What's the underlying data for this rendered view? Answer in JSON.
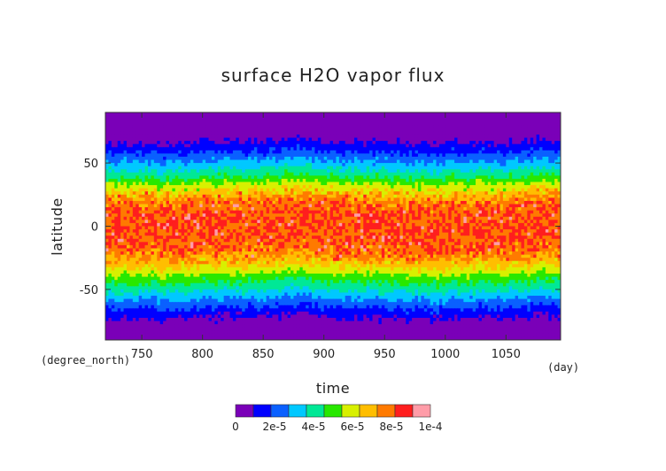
{
  "chart_data": {
    "type": "heatmap",
    "title": "surface H2O vapor flux",
    "xlabel": "time",
    "ylabel": "latitude",
    "x_unit": "(day)",
    "y_unit": "(degree_north)",
    "xlim": [
      720,
      1095
    ],
    "ylim": [
      -90,
      90
    ],
    "x_ticks": [
      {
        "value": 750,
        "label": "750"
      },
      {
        "value": 800,
        "label": "800"
      },
      {
        "value": 850,
        "label": "850"
      },
      {
        "value": 900,
        "label": "900"
      },
      {
        "value": 950,
        "label": "950"
      },
      {
        "value": 1000,
        "label": "1000"
      },
      {
        "value": 1050,
        "label": "1050"
      }
    ],
    "y_ticks": [
      {
        "value": 50,
        "label": "50"
      },
      {
        "value": 0,
        "label": "0"
      },
      {
        "value": -50,
        "label": "-50"
      }
    ],
    "color_levels": [
      0,
      1e-05,
      2e-05,
      3e-05,
      4e-05,
      5e-05,
      6e-05,
      7e-05,
      8e-05,
      9e-05,
      0.0001
    ],
    "colors": [
      "#7a00b8",
      "#0000ff",
      "#0a60ff",
      "#00c8ff",
      "#00e896",
      "#28e800",
      "#d8f000",
      "#ffbe00",
      "#ff7a00",
      "#ff1e1e",
      "#ff9ca8"
    ],
    "colorbar_labels": [
      {
        "value": 0,
        "label": "0"
      },
      {
        "value": 2e-05,
        "label": "2e-5"
      },
      {
        "value": 4e-05,
        "label": "4e-5"
      },
      {
        "value": 6e-05,
        "label": "6e-5"
      },
      {
        "value": 8e-05,
        "label": "8e-5"
      },
      {
        "value": 0.0001,
        "label": "1e-4"
      }
    ],
    "latitudinal_profile": {
      "latitude": [
        -90,
        -80,
        -70,
        -60,
        -50,
        -40,
        -30,
        -20,
        -10,
        0,
        10,
        20,
        30,
        40,
        50,
        60,
        70,
        80,
        90
      ],
      "value": [
        0,
        2e-06,
        1.2e-05,
        2.6e-05,
        4.2e-05,
        5.6e-05,
        7.4e-05,
        8.6e-05,
        9e-05,
        9e-05,
        9.1e-05,
        8.4e-05,
        6.8e-05,
        4.8e-05,
        3.2e-05,
        1.8e-05,
        6e-06,
        1e-06,
        0
      ]
    },
    "grid": false,
    "legend": "colorbar-bottom"
  }
}
